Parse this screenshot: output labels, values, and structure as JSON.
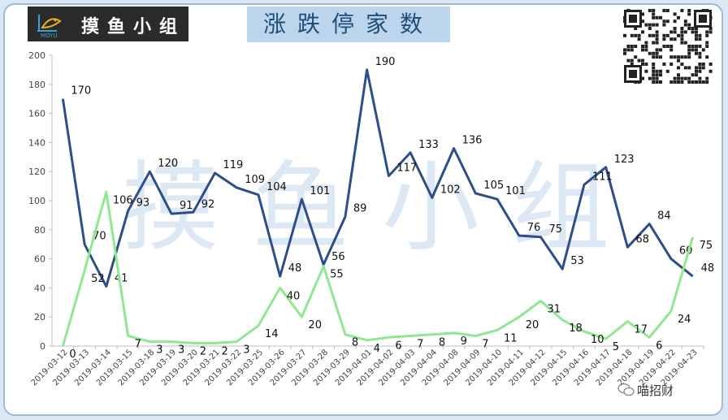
{
  "brand": {
    "logo_text": "MOYU",
    "name": "摸鱼小组",
    "watermark": "摸鱼小组"
  },
  "title": "涨跌停家数",
  "wechat_label": "喵招财",
  "icons": [
    "logo-mark-icon",
    "qr-code-icon",
    "wechat-icon"
  ],
  "colors": {
    "up_series": "#2e4d8a",
    "down_series": "#8fe88f",
    "title_bg": "#bcd5ec",
    "frame": "#9dbad6"
  },
  "chart_data": {
    "type": "line",
    "title": "涨跌停家数",
    "xlabel": "",
    "ylabel": "",
    "ylim": [
      0,
      200
    ],
    "yticks": [
      0,
      20,
      40,
      60,
      80,
      100,
      120,
      140,
      160,
      180,
      200
    ],
    "grid": false,
    "categories": [
      "2019-03-12",
      "2019-03-13",
      "2019-03-14",
      "2019-03-15",
      "2019-03-18",
      "2019-03-19",
      "2019-03-20",
      "2019-03-21",
      "2019-03-22",
      "2019-03-25",
      "2019-03-26",
      "2019-03-27",
      "2019-03-28",
      "2019-03-29",
      "2019-04-01",
      "2019-04-02",
      "2019-04-03",
      "2019-04-04",
      "2019-04-08",
      "2019-04-09",
      "2019-04-10",
      "2019-04-11",
      "2019-04-12",
      "2019-04-15",
      "2019-04-16",
      "2019-04-17",
      "2019-04-18",
      "2019-04-19",
      "2019-04-22",
      "2019-04-23"
    ],
    "series": [
      {
        "values": [
          170,
          70,
          41,
          93,
          120,
          91,
          92,
          119,
          109,
          104,
          48,
          101,
          56,
          89,
          190,
          117,
          133,
          102,
          136,
          105,
          101,
          76,
          75,
          53,
          111,
          123,
          68,
          84,
          60,
          48
        ]
      },
      {
        "values": [
          0,
          52,
          106,
          7,
          3,
          3,
          2,
          2,
          3,
          14,
          40,
          20,
          55,
          8,
          4,
          6,
          7,
          8,
          9,
          7,
          11,
          20,
          31,
          18,
          10,
          5,
          17,
          6,
          24,
          75
        ]
      }
    ]
  }
}
